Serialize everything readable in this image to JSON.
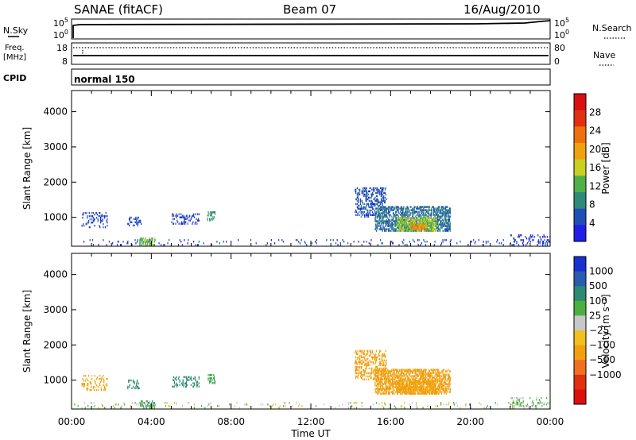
{
  "header": {
    "station": "SANAE (fitACF)",
    "beam": "Beam 07",
    "date": "16/Aug/2010"
  },
  "panel_labels": {
    "nsky": "N.Sky",
    "nsearch": "N.Search",
    "freq_line1": "Freq.",
    "freq_line2": "[MHz]",
    "nave": "Nave",
    "cpid": "CPID",
    "cpid_value": "normal 150"
  },
  "top_ticks": {
    "nsky_left": [
      "10^5",
      "10^0"
    ],
    "nsky_right": [
      "10^5",
      "10^0"
    ],
    "freq_left": [
      "18",
      "8"
    ],
    "nave_right": [
      "80",
      "0"
    ]
  },
  "colors": {
    "power_scale": [
      "#1f1fe6",
      "#1f4fb4",
      "#2f8a7a",
      "#4fb04a",
      "#c8d020",
      "#f0a010",
      "#f07010",
      "#e03010",
      "#d81010"
    ],
    "velocity_scale": [
      "#1830d0",
      "#2a5cb0",
      "#2e8a72",
      "#4cb040",
      "#c8c8c8",
      "#f0c020",
      "#f0a010",
      "#f07020",
      "#e03010",
      "#dd1010"
    ]
  },
  "chart_data": [
    {
      "type": "heatmap",
      "quantity": "Power",
      "ylabel": "Slant Range [km]",
      "ylim": [
        180,
        4600
      ],
      "yticks": [
        1000,
        2000,
        3000,
        4000
      ],
      "xlim": [
        0,
        24
      ],
      "colorbar_label": "Power [dB]",
      "colorbar_range": [
        0,
        32
      ],
      "colorbar_ticks": [
        "4",
        "8",
        "12",
        "16",
        "20",
        "24",
        "28"
      ],
      "clusters": [
        {
          "t": [
            0.5,
            1.8
          ],
          "r": [
            700,
            1150
          ],
          "value": 5,
          "density": 0.18
        },
        {
          "t": [
            2.8,
            3.5
          ],
          "r": [
            750,
            1000
          ],
          "value": 5,
          "density": 0.2
        },
        {
          "t": [
            5.0,
            6.4
          ],
          "r": [
            800,
            1100
          ],
          "value": 5,
          "density": 0.25
        },
        {
          "t": [
            6.8,
            7.2
          ],
          "r": [
            900,
            1150
          ],
          "value": 10,
          "density": 0.35
        },
        {
          "t": [
            0.0,
            24.0
          ],
          "r": [
            200,
            400
          ],
          "value": 5,
          "density": 0.05
        },
        {
          "t": [
            3.4,
            4.2
          ],
          "r": [
            200,
            420
          ],
          "value": 14,
          "density": 0.35
        },
        {
          "t": [
            14.2,
            15.8
          ],
          "r": [
            1000,
            1850
          ],
          "value": 6,
          "density": 0.3
        },
        {
          "t": [
            15.2,
            19.0
          ],
          "r": [
            600,
            1300
          ],
          "value": 8,
          "density": 0.5
        },
        {
          "t": [
            16.3,
            18.3
          ],
          "r": [
            600,
            1000
          ],
          "value": 16,
          "density": 0.6
        },
        {
          "t": [
            17.0,
            17.8
          ],
          "r": [
            650,
            850
          ],
          "value": 24,
          "density": 0.6
        },
        {
          "t": [
            22.0,
            24.0
          ],
          "r": [
            200,
            500
          ],
          "value": 5,
          "density": 0.15
        }
      ]
    },
    {
      "type": "heatmap",
      "quantity": "Velocity",
      "ylabel": "Slant Range [km]",
      "ylim": [
        180,
        4600
      ],
      "yticks": [
        1000,
        2000,
        3000,
        4000
      ],
      "xlim": [
        0,
        24
      ],
      "xticks": [
        "00:00",
        "04:00",
        "08:00",
        "12:00",
        "16:00",
        "20:00",
        "00:00"
      ],
      "xlabel": "Time UT",
      "colorbar_label": "Velocity [m s⁻¹]",
      "colorbar_ticks": [
        "1000",
        "500",
        "100",
        "25",
        "−25",
        "−100",
        "−500",
        "−1000"
      ],
      "clusters": [
        {
          "t": [
            0.5,
            1.8
          ],
          "r": [
            700,
            1150
          ],
          "value": -150,
          "density": 0.18
        },
        {
          "t": [
            2.8,
            3.5
          ],
          "r": [
            750,
            1000
          ],
          "value": 200,
          "density": 0.2
        },
        {
          "t": [
            5.0,
            6.4
          ],
          "r": [
            800,
            1100
          ],
          "value": 200,
          "density": 0.25
        },
        {
          "t": [
            6.8,
            7.2
          ],
          "r": [
            900,
            1150
          ],
          "value": 80,
          "density": 0.35
        },
        {
          "t": [
            0.0,
            24.0
          ],
          "r": [
            200,
            400
          ],
          "value": 0,
          "density": 0.05
        },
        {
          "t": [
            3.4,
            4.2
          ],
          "r": [
            200,
            420
          ],
          "value": 60,
          "density": 0.35
        },
        {
          "t": [
            14.2,
            15.8
          ],
          "r": [
            1000,
            1850
          ],
          "value": -300,
          "density": 0.3
        },
        {
          "t": [
            15.2,
            19.0
          ],
          "r": [
            600,
            1300
          ],
          "value": -250,
          "density": 0.5
        },
        {
          "t": [
            16.3,
            18.3
          ],
          "r": [
            600,
            1000
          ],
          "value": -150,
          "density": 0.6
        },
        {
          "t": [
            22.0,
            24.0
          ],
          "r": [
            200,
            500
          ],
          "value": 40,
          "density": 0.15
        }
      ]
    }
  ]
}
